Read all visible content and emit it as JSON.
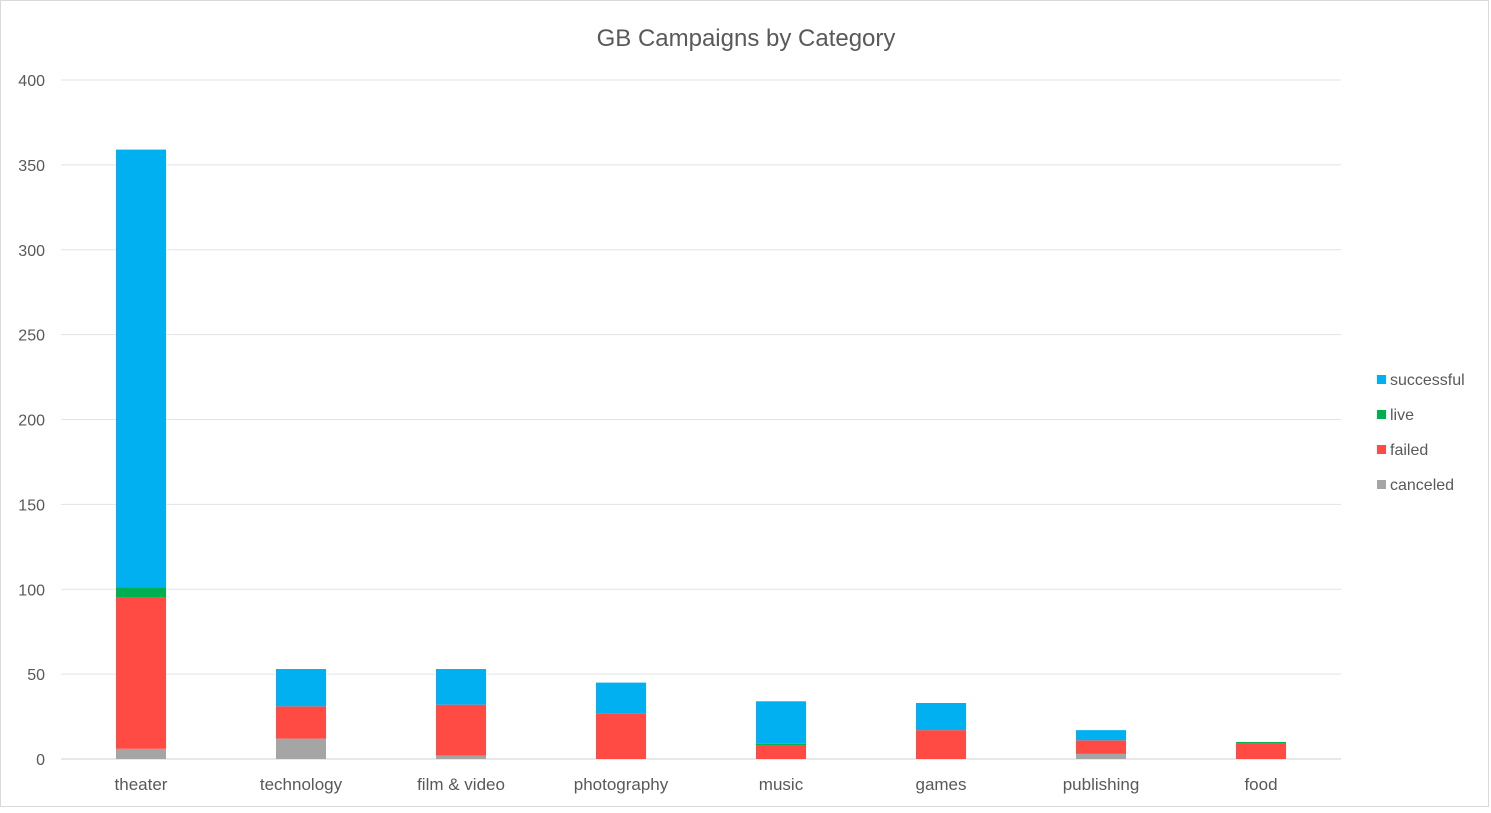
{
  "chart_data": {
    "type": "bar",
    "stacked": true,
    "title": "GB Campaigns by Category",
    "xlabel": "",
    "ylabel": "",
    "categories": [
      "theater",
      "technology",
      "film & video",
      "photography",
      "music",
      "games",
      "publishing",
      "food"
    ],
    "series": [
      {
        "name": "canceled",
        "color": "#a5a5a5",
        "values": [
          6,
          12,
          2,
          0,
          0,
          0,
          3,
          0
        ]
      },
      {
        "name": "failed",
        "color": "#ff4b44",
        "values": [
          89,
          19,
          30,
          27,
          8,
          17,
          8,
          9
        ]
      },
      {
        "name": "live",
        "color": "#00b050",
        "values": [
          6,
          0,
          0,
          0,
          1,
          0,
          0,
          1
        ]
      },
      {
        "name": "successful",
        "color": "#00b0f0",
        "values": [
          258,
          22,
          21,
          18,
          25,
          16,
          6,
          0
        ]
      }
    ],
    "ylim": [
      0,
      400
    ],
    "yticks": [
      0,
      50,
      100,
      150,
      200,
      250,
      300,
      350,
      400
    ],
    "grid": true,
    "legend_position": "right",
    "legend_order": [
      "successful",
      "live",
      "failed",
      "canceled"
    ]
  }
}
